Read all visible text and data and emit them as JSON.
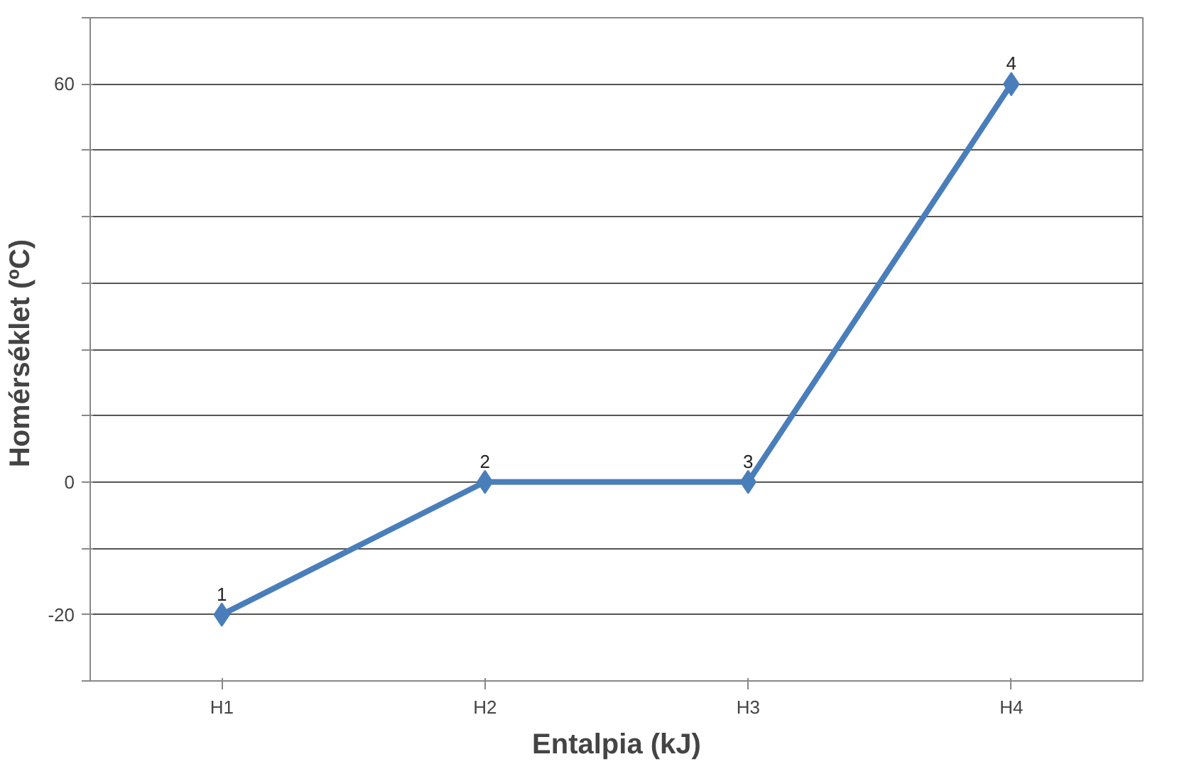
{
  "chart_data": {
    "type": "line",
    "xlabel": "Entalpia (kJ)",
    "ylabel": "Homérséklet  (ºC)",
    "categories": [
      "H1",
      "H2",
      "H3",
      "H4"
    ],
    "series": [
      {
        "color": "#4a7ebb",
        "values": [
          -20,
          0,
          0,
          60
        ]
      }
    ],
    "ylim": [
      -30,
      70
    ],
    "yticks": [
      {
        "value": -30,
        "label": null
      },
      -20,
      {
        "value": -10,
        "label": null
      },
      0,
      {
        "value": 10,
        "label": null
      },
      {
        "value": 20,
        "label": null
      },
      {
        "value": 30,
        "label": null
      },
      {
        "value": 40,
        "label": null
      },
      {
        "value": 50,
        "label": null
      },
      60,
      {
        "value": 70,
        "label": null
      }
    ],
    "grid": "y",
    "marker": "diamond",
    "line_style": "solid",
    "annotations": [
      {
        "text": "1",
        "x": "H1",
        "y": -20
      },
      {
        "text": "2",
        "x": "H2",
        "y": 0
      },
      {
        "text": "3",
        "x": "H3",
        "y": 0
      },
      {
        "text": "4",
        "x": "H4",
        "y": 60
      }
    ]
  }
}
